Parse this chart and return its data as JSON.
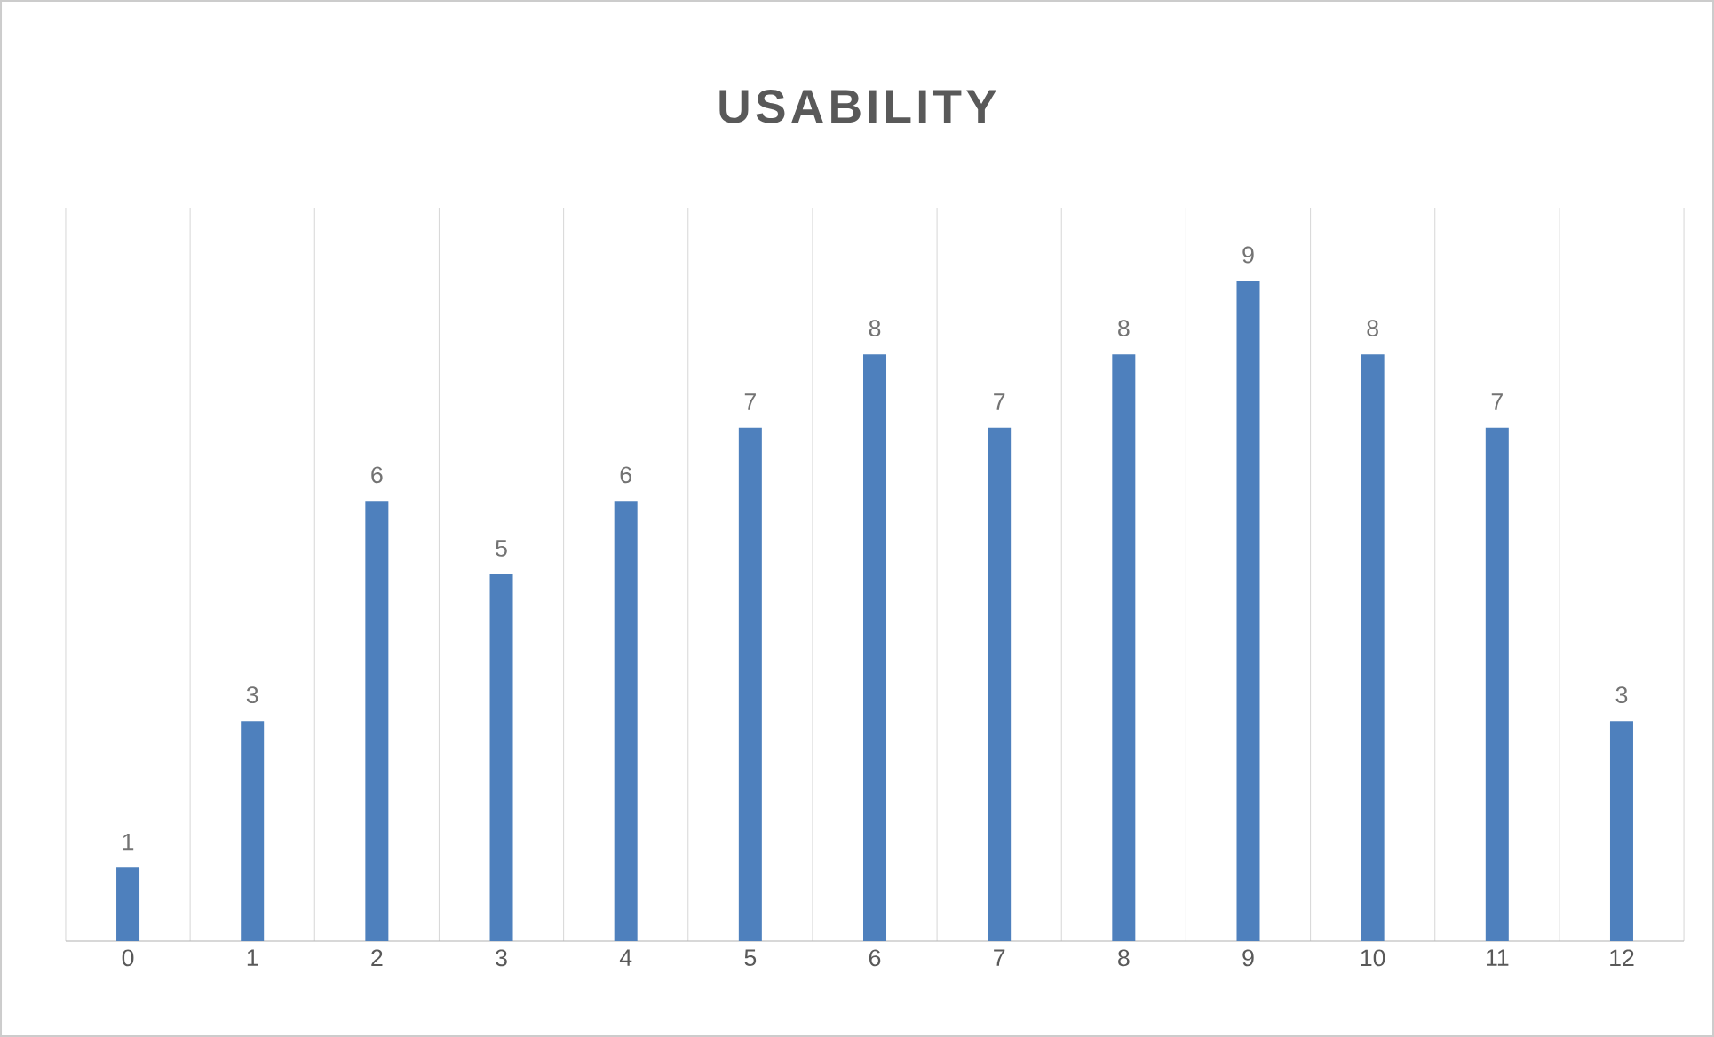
{
  "chart_data": {
    "type": "bar",
    "title": "USABILITY",
    "categories": [
      "0",
      "1",
      "2",
      "3",
      "4",
      "5",
      "6",
      "7",
      "8",
      "9",
      "10",
      "11",
      "12"
    ],
    "values": [
      1,
      3,
      6,
      5,
      6,
      7,
      8,
      7,
      8,
      9,
      8,
      7,
      3
    ],
    "color": "#4e80bd",
    "data_labels": true,
    "grid": "x"
  }
}
